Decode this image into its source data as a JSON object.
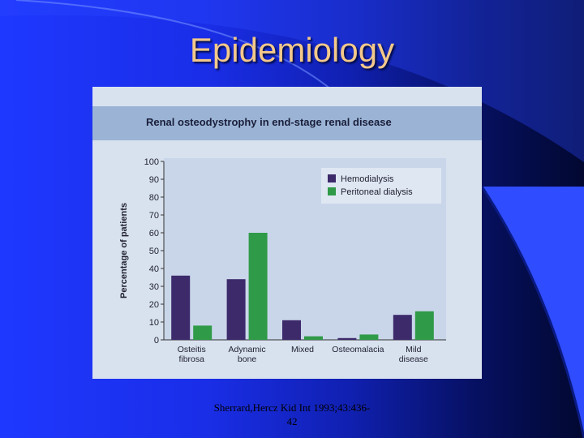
{
  "slide": {
    "title": "Epidemiology",
    "citation_line1": "Sherrard,Hercz Kid Int 1993;43:436-",
    "citation_line2": "42"
  },
  "colors": {
    "hemodialysis": "#3d2a6b",
    "peritoneal": "#2f9a48",
    "plot_bg": "#c9d6ea",
    "axis_text": "#222233"
  },
  "chart_data": {
    "type": "bar",
    "title": "Renal osteodystrophy in end-stage renal disease",
    "ylabel": "Percentage of patients",
    "xlabel": "",
    "ylim": [
      0,
      100
    ],
    "yticks": [
      0,
      10,
      20,
      30,
      40,
      50,
      60,
      70,
      80,
      90,
      100
    ],
    "categories": [
      [
        "Osteitis",
        "fibrosa"
      ],
      [
        "Adynamic",
        "bone"
      ],
      [
        "Mixed"
      ],
      [
        "Osteomalacia"
      ],
      [
        "Mild",
        "disease"
      ]
    ],
    "series": [
      {
        "name": "Hemodialysis",
        "color": "#3d2a6b",
        "values": [
          36,
          34,
          11,
          1,
          14
        ]
      },
      {
        "name": "Peritoneal dialysis",
        "color": "#2f9a48",
        "values": [
          8,
          60,
          2,
          3,
          16
        ]
      }
    ],
    "legend_position": "top-right",
    "grid": false
  }
}
